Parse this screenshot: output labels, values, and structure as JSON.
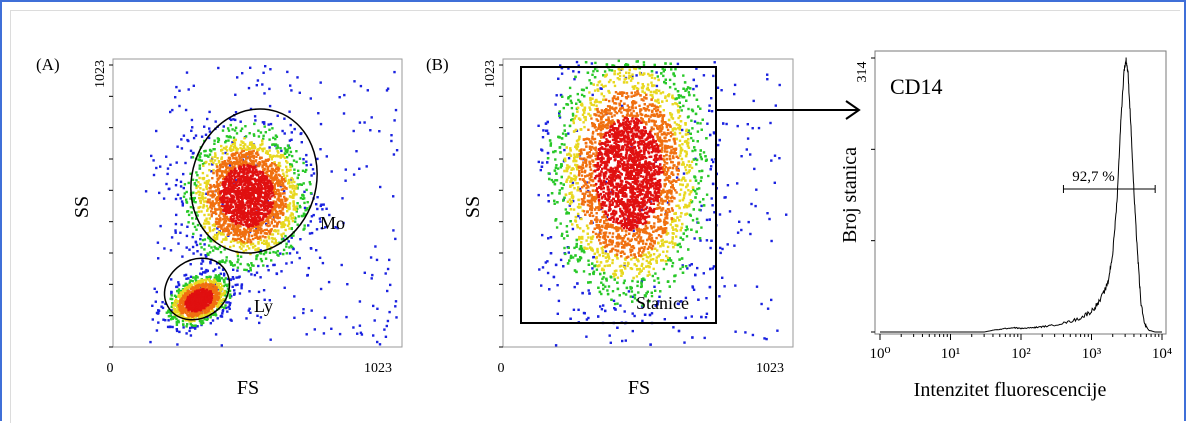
{
  "chart_data": [
    {
      "type": "scatter",
      "panel_label": "(A)",
      "xlabel": "FS",
      "ylabel": "SS",
      "x_ticks": [
        "0",
        "1023"
      ],
      "y_ticks": [
        "1023"
      ],
      "xlim": [
        0,
        1023
      ],
      "ylim": [
        0,
        1023
      ],
      "populations": [
        {
          "name": "Mo",
          "center": [
            470,
            540
          ],
          "spread": [
            95,
            110
          ],
          "gate": "ellipse"
        },
        {
          "name": "Ly",
          "center": [
            300,
            170
          ],
          "spread": [
            45,
            40
          ],
          "gate": "ellipse"
        }
      ]
    },
    {
      "type": "scatter",
      "panel_label": "(B)",
      "xlabel": "FS",
      "ylabel": "SS",
      "x_ticks": [
        "0",
        "1023"
      ],
      "y_ticks": [
        "1023"
      ],
      "xlim": [
        0,
        1023
      ],
      "ylim": [
        0,
        1023
      ],
      "populations": [
        {
          "name": "Stanice",
          "center": [
            440,
            620
          ],
          "spread": [
            120,
            200
          ],
          "gate": "rectangle",
          "gate_range_x": [
            60,
            830
          ],
          "gate_range_y": [
            60,
            980
          ]
        }
      ]
    },
    {
      "type": "line",
      "title": "CD14",
      "xlabel": "Intenzitet fluorescencije",
      "ylabel": "Broj stanica",
      "x_ticks": [
        "10⁰",
        "10¹",
        "10²",
        "10³",
        "10⁴"
      ],
      "y_ticks": [
        "314"
      ],
      "xscale": "log",
      "xlim": [
        1,
        10000
      ],
      "ylim": [
        0,
        314
      ],
      "series": [
        {
          "x": [
            1,
            30,
            40,
            60,
            80,
            100,
            150,
            200,
            300,
            500,
            700,
            1000,
            1300,
            1700,
            2000,
            2300,
            2600,
            2900,
            3100,
            3300,
            3600,
            4000,
            4500,
            5000,
            5600,
            6500,
            8000,
            10000
          ],
          "values": [
            0,
            0,
            2,
            4,
            5,
            4,
            5,
            6,
            8,
            12,
            16,
            24,
            35,
            55,
            90,
            150,
            240,
            300,
            312,
            296,
            240,
            160,
            90,
            35,
            10,
            2,
            0,
            0
          ]
        }
      ],
      "marker": {
        "label": "92,7 %",
        "from": 400,
        "to": 8000
      }
    }
  ]
}
